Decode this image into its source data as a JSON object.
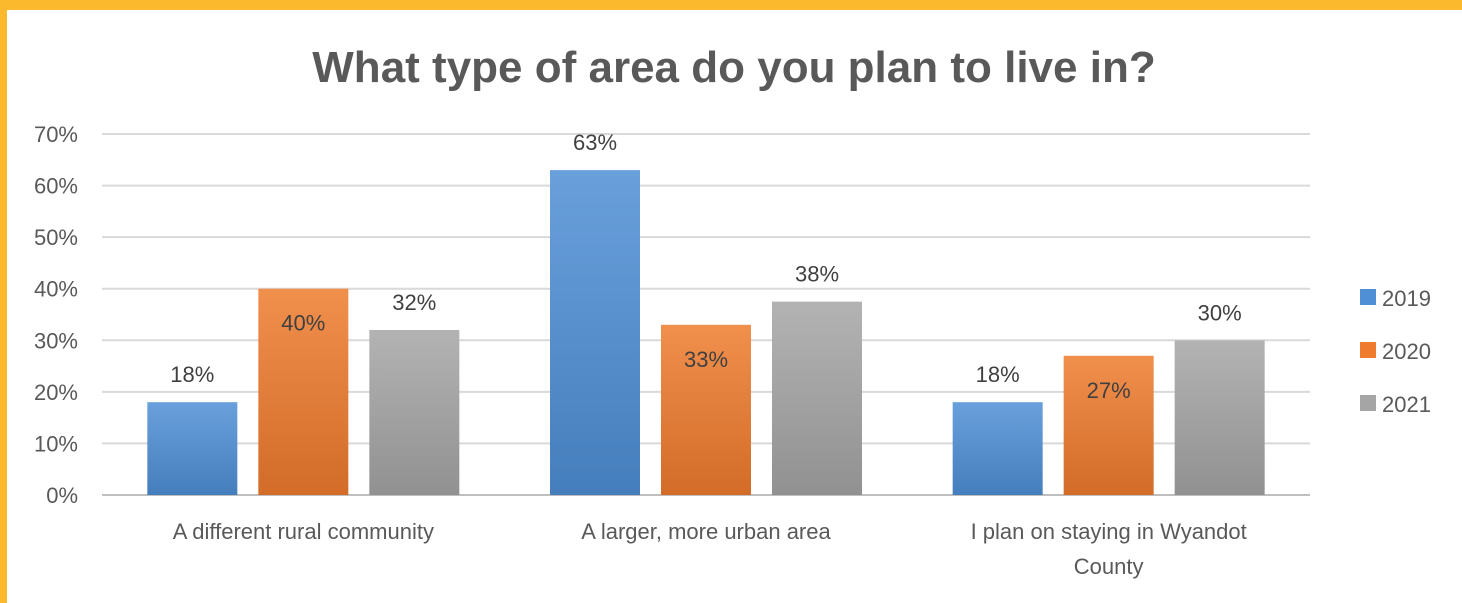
{
  "chart_data": {
    "type": "bar",
    "title": "What type of area do you plan to live in?",
    "xlabel": "",
    "ylabel": "",
    "ylim": [
      0,
      0.7
    ],
    "y_ticks": [
      "0%",
      "10%",
      "20%",
      "30%",
      "40%",
      "50%",
      "60%",
      "70%"
    ],
    "y_tick_values": [
      0,
      0.1,
      0.2,
      0.3,
      0.4,
      0.5,
      0.6,
      0.7
    ],
    "grid": true,
    "legend_position": "right",
    "categories": [
      [
        "A different rural community"
      ],
      [
        "A larger, more urban area"
      ],
      [
        "I plan on staying in Wyandot",
        "County"
      ]
    ],
    "series": [
      {
        "name": "2019",
        "color": "#4e8fd6",
        "values": [
          0.18,
          0.63,
          0.18
        ],
        "labels": [
          "18%",
          "63%",
          "18%"
        ],
        "label_inside": [
          false,
          false,
          false
        ]
      },
      {
        "name": "2020",
        "color": "#ef7b2e",
        "values": [
          0.4,
          0.33,
          0.27
        ],
        "labels": [
          "40%",
          "33%",
          "27%"
        ],
        "label_inside": [
          true,
          true,
          true
        ]
      },
      {
        "name": "2021",
        "color": "#a5a5a5",
        "values": [
          0.32,
          0.375,
          0.3
        ],
        "labels": [
          "32%",
          "38%",
          "30%"
        ],
        "label_inside": [
          false,
          false,
          false
        ]
      }
    ]
  }
}
